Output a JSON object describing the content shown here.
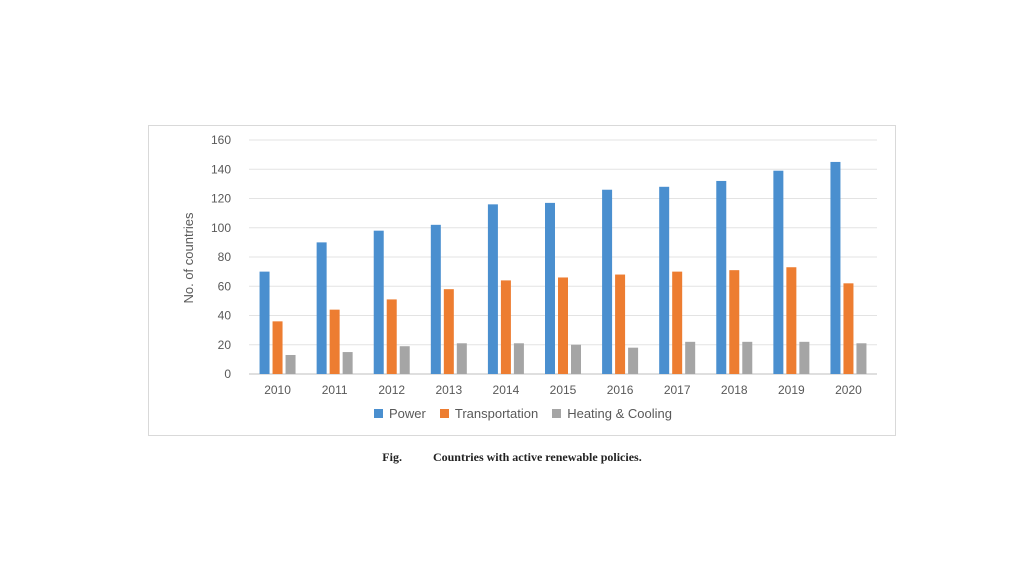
{
  "caption": {
    "label": "Fig.",
    "text": "Countries with active renewable policies."
  },
  "chart_data": {
    "type": "bar",
    "categories": [
      "2010",
      "2011",
      "2012",
      "2013",
      "2014",
      "2015",
      "2016",
      "2017",
      "2018",
      "2019",
      "2020"
    ],
    "series": [
      {
        "name": "Power",
        "color": "#4a8fcf",
        "values": [
          70,
          90,
          98,
          102,
          116,
          117,
          126,
          128,
          132,
          139,
          145
        ]
      },
      {
        "name": "Transportation",
        "color": "#ed7d31",
        "values": [
          36,
          44,
          51,
          58,
          64,
          66,
          68,
          70,
          71,
          73,
          62
        ]
      },
      {
        "name": "Heating & Cooling",
        "color": "#a5a5a5",
        "values": [
          13,
          15,
          19,
          21,
          21,
          20,
          18,
          22,
          22,
          22,
          21
        ]
      }
    ],
    "ylabel": "No. of countries",
    "xlabel": "",
    "ylim": [
      0,
      160
    ],
    "yticks": [
      0,
      20,
      40,
      60,
      80,
      100,
      120,
      140,
      160
    ],
    "grid": true,
    "legend_position": "bottom"
  }
}
